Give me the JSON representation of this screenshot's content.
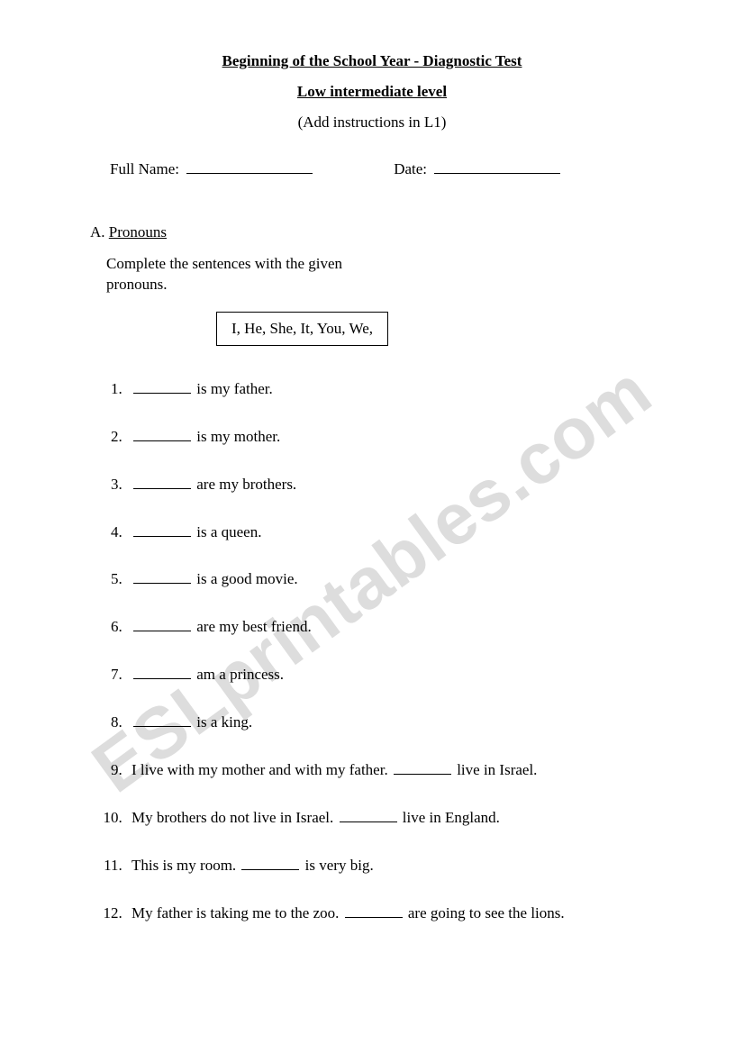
{
  "watermark": "ESLprintables.com",
  "header": {
    "title": "Beginning of the School Year - Diagnostic Test",
    "subtitle": "Low intermediate level",
    "note": "(Add instructions in L1)"
  },
  "fields": {
    "name_label": "Full Name:",
    "date_label": "Date:"
  },
  "sectionA": {
    "letter": "A.",
    "title": "Pronouns",
    "instruction": "Complete the sentences with the given pronouns.",
    "word_box": "I, He, She, It, You, We,",
    "items": [
      {
        "before": "",
        "after": " is my father."
      },
      {
        "before": "",
        "after": " is my mother."
      },
      {
        "before": "",
        "after": " are my brothers."
      },
      {
        "before": "",
        "after": " is a queen."
      },
      {
        "before": "",
        "after": " is a good movie."
      },
      {
        "before": "",
        "after": " are my best friend."
      },
      {
        "before": "",
        "after": " am a princess."
      },
      {
        "before": "",
        "after": " is a king."
      },
      {
        "before": "I live with my mother and with my father. ",
        "after": " live in Israel."
      },
      {
        "before": "My brothers do not live in Israel. ",
        "after": " live in England."
      },
      {
        "before": "This is my room. ",
        "after": " is very big."
      },
      {
        "before": "My father is taking me to the zoo. ",
        "after": " are going to see the lions."
      }
    ]
  }
}
